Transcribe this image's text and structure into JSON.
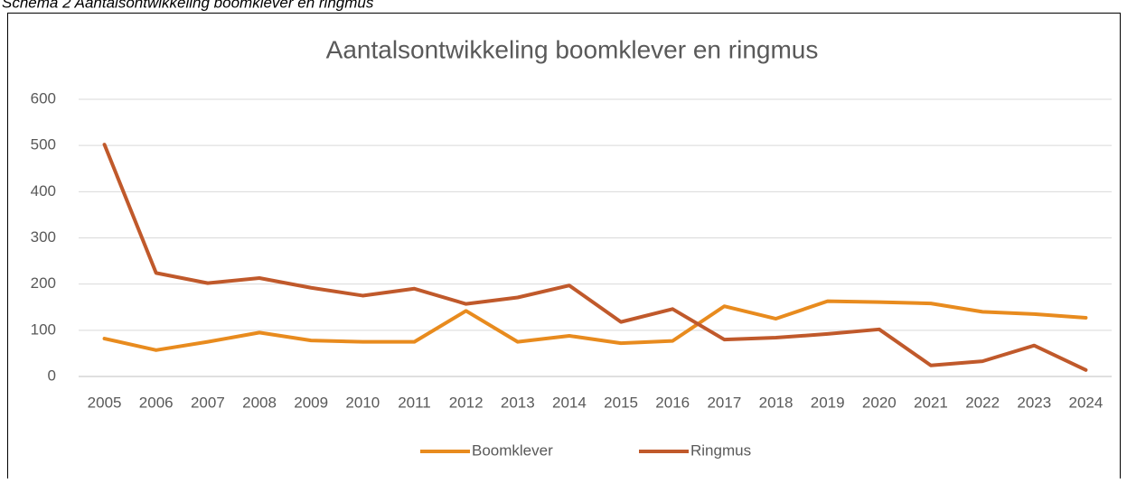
{
  "caption": "Schema 2  Aantalsontwikkeling boomklever en ringmus",
  "chart_data": {
    "type": "line",
    "title": "Aantalsontwikkeling boomklever en ringmus",
    "categories": [
      "2005",
      "2006",
      "2007",
      "2008",
      "2009",
      "2010",
      "2011",
      "2012",
      "2013",
      "2014",
      "2015",
      "2016",
      "2017",
      "2018",
      "2019",
      "2020",
      "2021",
      "2022",
      "2023",
      "2024"
    ],
    "series": [
      {
        "name": "Boomklever",
        "color": "#e88b1e",
        "values": [
          82,
          57,
          75,
          95,
          78,
          75,
          75,
          142,
          75,
          88,
          72,
          77,
          152,
          125,
          163,
          161,
          158,
          140,
          135,
          127
        ]
      },
      {
        "name": "Ringmus",
        "color": "#c0592b",
        "values": [
          502,
          224,
          202,
          213,
          192,
          175,
          190,
          157,
          171,
          197,
          118,
          146,
          80,
          84,
          92,
          102,
          24,
          33,
          67,
          14
        ]
      }
    ],
    "ylim": [
      0,
      600
    ],
    "yticks": [
      0,
      100,
      200,
      300,
      400,
      500,
      600
    ],
    "grid": true,
    "legend": "bottom"
  }
}
